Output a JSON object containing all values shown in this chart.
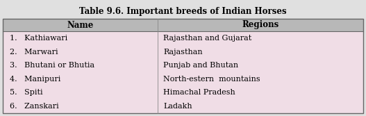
{
  "title": "Table 9.6. Important breeds of Indian Horses",
  "headers": [
    "Name",
    "Regions"
  ],
  "rows": [
    [
      "1.   Kathiawari",
      "Rajasthan and Gujarat"
    ],
    [
      "2.   Marwari",
      "Rajasthan"
    ],
    [
      "3.   Bhutani or Bhutia",
      "Punjab and Bhutan"
    ],
    [
      "4.   Manipuri",
      "North-estern  mountains"
    ],
    [
      "5.   Spiti",
      "Himachal Pradesh"
    ],
    [
      "6.   Zanskari",
      "Ladakh"
    ]
  ],
  "header_bg": "#b8b8b8",
  "row_bg": "#f0dde6",
  "outer_border": "#888888",
  "title_fontsize": 8.5,
  "header_fontsize": 8.5,
  "row_fontsize": 8.0,
  "fig_bg": "#e8e8e8"
}
